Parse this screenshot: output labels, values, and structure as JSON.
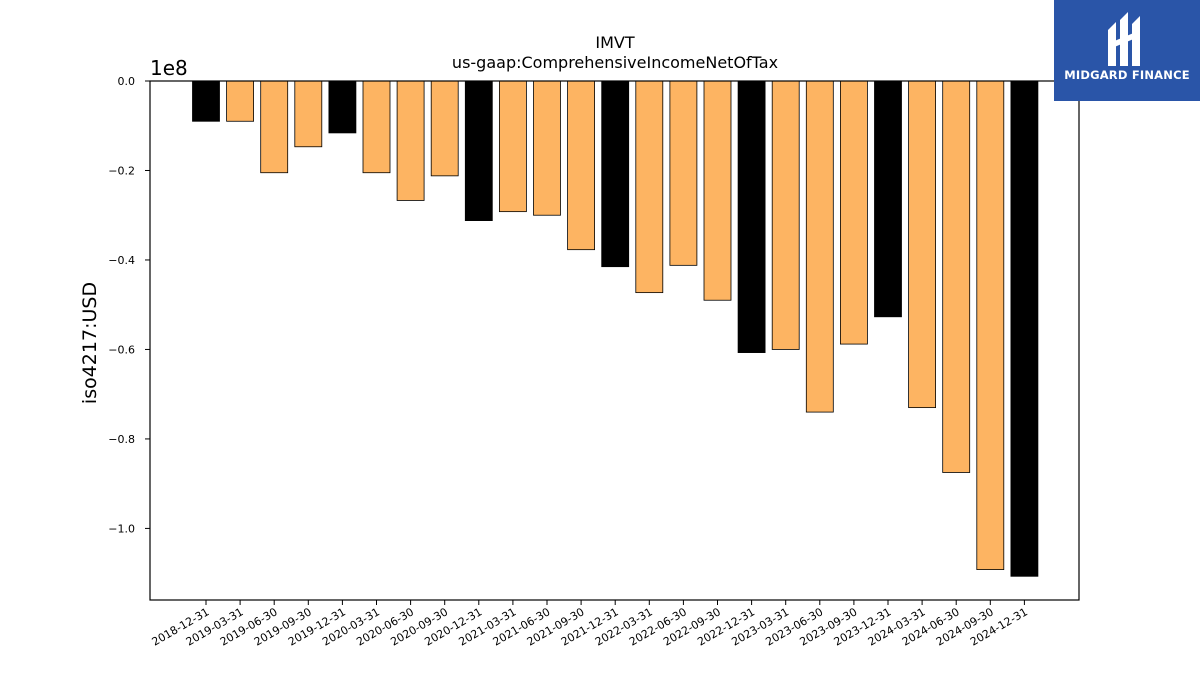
{
  "chart_data": {
    "type": "bar",
    "title": "IMVT",
    "subtitle": "us-gaap:ComprehensiveIncomeNetOfTax",
    "ylabel": "iso4217:USD",
    "xlabel": "",
    "offset_label": "1e8",
    "ylim": [
      -1.16,
      0.0
    ],
    "y_ticks": [
      0.0,
      -0.2,
      -0.4,
      -0.6,
      -0.8,
      -1.0
    ],
    "y_tick_labels": [
      "0.0",
      "−0.2",
      "−0.4",
      "−0.6",
      "−0.8",
      "−1.0"
    ],
    "grid": false,
    "categories": [
      "2018-12-31",
      "2019-03-31",
      "2019-06-30",
      "2019-09-30",
      "2019-12-31",
      "2020-03-31",
      "2020-06-30",
      "2020-09-30",
      "2020-12-31",
      "2021-03-31",
      "2021-06-30",
      "2021-09-30",
      "2021-12-31",
      "2022-03-31",
      "2022-06-30",
      "2022-09-30",
      "2022-12-31",
      "2023-03-31",
      "2023-06-30",
      "2023-09-30",
      "2023-12-31",
      "2024-03-31",
      "2024-06-30",
      "2024-09-30",
      "2024-12-31"
    ],
    "values": [
      -0.09,
      -0.09,
      -0.205,
      -0.147,
      -0.116,
      -0.205,
      -0.267,
      -0.212,
      -0.312,
      -0.292,
      -0.3,
      -0.377,
      -0.415,
      -0.473,
      -0.412,
      -0.49,
      -0.607,
      -0.6,
      -0.74,
      -0.588,
      -0.527,
      -0.73,
      -0.875,
      -1.092,
      -1.107
    ],
    "period": [
      "annual",
      "quarterly",
      "quarterly",
      "quarterly",
      "annual",
      "quarterly",
      "quarterly",
      "quarterly",
      "annual",
      "quarterly",
      "quarterly",
      "quarterly",
      "annual",
      "quarterly",
      "quarterly",
      "quarterly",
      "annual",
      "quarterly",
      "quarterly",
      "quarterly",
      "annual",
      "quarterly",
      "quarterly",
      "quarterly",
      "annual"
    ],
    "colors": {
      "annual": "#000000",
      "quarterly": "#fdb462",
      "edge": "#000000"
    }
  },
  "logo": {
    "text": "MIDGARD FINANCE",
    "background": "#2a55a8"
  }
}
